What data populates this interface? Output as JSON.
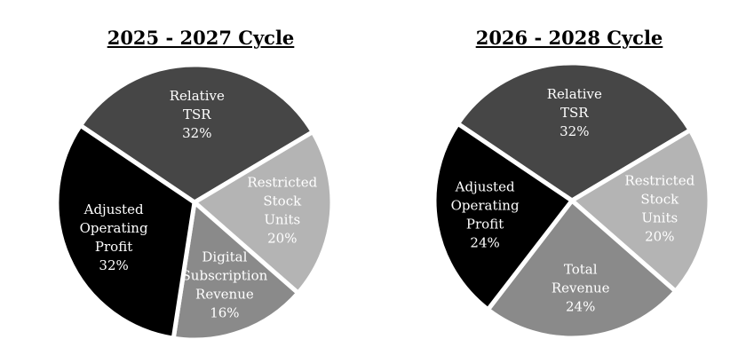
{
  "chart_data": [
    {
      "type": "pie",
      "title": "2025 - 2027 Cycle",
      "slices": [
        {
          "label": [
            "Relative",
            "TSR"
          ],
          "value": 32,
          "value_label": "32%",
          "color": "#464646",
          "text_color": "#ffffff"
        },
        {
          "label": [
            "Restricted",
            "Stock",
            "Units"
          ],
          "value": 20,
          "value_label": "20%",
          "color": "#b4b4b4",
          "text_color": "#ffffff"
        },
        {
          "label": [
            "Digital",
            "Subscription",
            "Revenue"
          ],
          "value": 16,
          "value_label": "16%",
          "color": "#8a8a8a",
          "text_color": "#ffffff"
        },
        {
          "label": [
            "Adjusted",
            "Operating",
            "Profit"
          ],
          "value": 32,
          "value_label": "32%",
          "color": "#000000",
          "text_color": "#ffffff"
        }
      ]
    },
    {
      "type": "pie",
      "title": "2026 - 2028 Cycle",
      "slices": [
        {
          "label": [
            "Relative",
            "TSR"
          ],
          "value": 32,
          "value_label": "32%",
          "color": "#464646",
          "text_color": "#ffffff"
        },
        {
          "label": [
            "Restricted",
            "Stock",
            "Units"
          ],
          "value": 20,
          "value_label": "20%",
          "color": "#b4b4b4",
          "text_color": "#ffffff"
        },
        {
          "label": [
            "Total",
            "Revenue"
          ],
          "value": 24,
          "value_label": "24%",
          "color": "#8a8a8a",
          "text_color": "#ffffff"
        },
        {
          "label": [
            "Adjusted",
            "Operating",
            "Profit"
          ],
          "value": 24,
          "value_label": "24%",
          "color": "#000000",
          "text_color": "#ffffff"
        }
      ]
    }
  ]
}
